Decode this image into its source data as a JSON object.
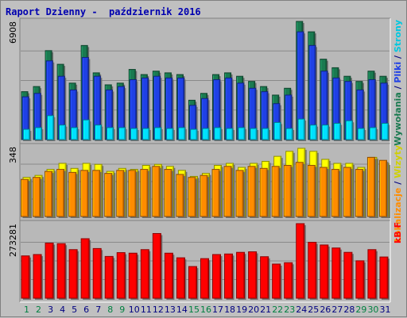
{
  "title": "Raport Dzienny -  październik 2016",
  "colors": {
    "background": "#c0c0c0",
    "panel": "#b8b8b8",
    "title": "#0000b0",
    "weekday": "#000080",
    "weekend": "#008040",
    "wywolania": "#1a7a50",
    "pliki": "#1f40e6",
    "strony": "#00e0ff",
    "wizyty": "#ffff00",
    "lokalizacje": "#ff8c00",
    "kbf": "#ff0000"
  },
  "legend": {
    "top": [
      {
        "text": "Wywołania",
        "color": "#1a7a50"
      },
      {
        "text": " / ",
        "color": "#000080"
      },
      {
        "text": "Pliki",
        "color": "#1f40e6"
      },
      {
        "text": " / ",
        "color": "#000080"
      },
      {
        "text": "Strony",
        "color": "#00c8e0"
      }
    ],
    "middle": [
      {
        "text": "Lokalizacje",
        "color": "#ff8c00"
      },
      {
        "text": " / ",
        "color": "#000080"
      },
      {
        "text": "Wizyty",
        "color": "#d0d000"
      }
    ],
    "bottom": [
      {
        "text": "kB F",
        "color": "#ff0000"
      }
    ]
  },
  "chart_data": [
    {
      "type": "bar",
      "panel": "top",
      "ymax_label": "6908",
      "ylim": [
        0,
        6908
      ],
      "categories": [
        "1",
        "2",
        "3",
        "4",
        "5",
        "6",
        "7",
        "8",
        "9",
        "10",
        "11",
        "12",
        "13",
        "14",
        "15",
        "16",
        "17",
        "18",
        "19",
        "20",
        "21",
        "22",
        "23",
        "24",
        "25",
        "26",
        "27",
        "28",
        "29",
        "30",
        "31"
      ],
      "weekend_days": [
        1,
        2,
        8,
        9,
        15,
        16,
        22,
        23,
        29,
        30
      ],
      "series": [
        {
          "name": "Wywołania",
          "values": [
            2800,
            3100,
            5200,
            4400,
            3300,
            5500,
            3900,
            3200,
            3300,
            4100,
            3800,
            4000,
            3900,
            3800,
            2300,
            2700,
            3800,
            3900,
            3700,
            3400,
            3100,
            2600,
            3000,
            6908,
            6300,
            4700,
            4200,
            3700,
            3400,
            4000,
            3700
          ]
        },
        {
          "name": "Pliki",
          "values": [
            2500,
            2700,
            4600,
            3700,
            2900,
            4800,
            3700,
            2900,
            3100,
            3500,
            3600,
            3700,
            3600,
            3600,
            2000,
            2400,
            3500,
            3600,
            3300,
            3000,
            2800,
            2100,
            2600,
            6300,
            5500,
            4000,
            3600,
            3400,
            2900,
            3500,
            3300
          ]
        },
        {
          "name": "Strony",
          "values": [
            600,
            700,
            1400,
            850,
            700,
            1150,
            850,
            700,
            700,
            650,
            650,
            700,
            650,
            700,
            600,
            650,
            700,
            650,
            700,
            650,
            650,
            1000,
            650,
            1200,
            850,
            850,
            950,
            1100,
            650,
            700,
            950
          ]
        }
      ]
    },
    {
      "type": "bar",
      "panel": "middle",
      "ymax_label": "348",
      "ylim": [
        0,
        348
      ],
      "categories": [
        "1",
        "2",
        "3",
        "4",
        "5",
        "6",
        "7",
        "8",
        "9",
        "10",
        "11",
        "12",
        "13",
        "14",
        "15",
        "16",
        "17",
        "18",
        "19",
        "20",
        "21",
        "22",
        "23",
        "24",
        "25",
        "26",
        "27",
        "28",
        "29",
        "30",
        "31"
      ],
      "series": [
        {
          "name": "Wizyty",
          "values": [
            195,
            205,
            235,
            265,
            240,
            265,
            260,
            225,
            240,
            235,
            255,
            260,
            250,
            230,
            200,
            215,
            255,
            265,
            245,
            265,
            275,
            300,
            325,
            340,
            325,
            285,
            265,
            265,
            245,
            295,
            265
          ]
        },
        {
          "name": "Lokalizacje",
          "values": [
            185,
            195,
            225,
            235,
            220,
            230,
            230,
            215,
            230,
            230,
            235,
            250,
            235,
            210,
            195,
            205,
            235,
            250,
            230,
            250,
            240,
            250,
            255,
            270,
            255,
            245,
            235,
            245,
            235,
            295,
            280
          ]
        }
      ]
    },
    {
      "type": "bar",
      "panel": "bottom",
      "ymax_label": "273281",
      "ylim": [
        0,
        273281
      ],
      "categories": [
        "1",
        "2",
        "3",
        "4",
        "5",
        "6",
        "7",
        "8",
        "9",
        "10",
        "11",
        "12",
        "13",
        "14",
        "15",
        "16",
        "17",
        "18",
        "19",
        "20",
        "21",
        "22",
        "23",
        "24",
        "25",
        "26",
        "27",
        "28",
        "29",
        "30",
        "31"
      ],
      "series": [
        {
          "name": "kB F",
          "values": [
            155000,
            160000,
            202000,
            200000,
            178000,
            218000,
            182000,
            153000,
            167000,
            165000,
            178000,
            237000,
            165000,
            148000,
            116000,
            145000,
            160000,
            162000,
            168000,
            170000,
            152000,
            125000,
            130000,
            273281,
            205000,
            195000,
            184000,
            168000,
            137000,
            178000,
            151000
          ]
        }
      ]
    }
  ]
}
